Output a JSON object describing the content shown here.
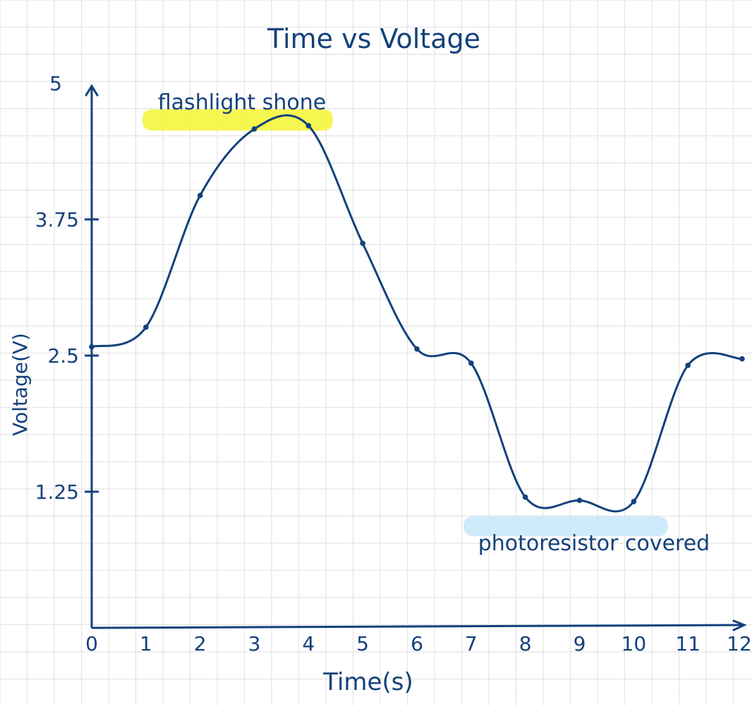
{
  "chart_data": {
    "type": "line",
    "title": "Time vs Voltage",
    "xlabel": "Time(s)",
    "ylabel": "Voltage(V)",
    "x": [
      0,
      1,
      2,
      3,
      4,
      5,
      6,
      7,
      8,
      9,
      10,
      11,
      12
    ],
    "series": [
      {
        "values": [
          2.58,
          2.76,
          3.97,
          4.58,
          4.61,
          3.53,
          2.56,
          2.43,
          1.2,
          1.17,
          1.16,
          2.41,
          2.47
        ]
      }
    ],
    "xticks": [
      "0",
      "1",
      "2",
      "3",
      "4",
      "5",
      "6",
      "7",
      "8",
      "9",
      "10",
      "11",
      "12"
    ],
    "yticks": [
      {
        "value": 1.25,
        "label": "1.25"
      },
      {
        "value": 2.5,
        "label": "2.5"
      },
      {
        "value": 3.75,
        "label": "3.75"
      },
      {
        "value": 5,
        "label": "5"
      }
    ],
    "xlim": [
      0,
      12
    ],
    "ylim": [
      0,
      5
    ],
    "grid": true,
    "annotations": [
      {
        "text": "flashlight shone",
        "x": 4,
        "y": 4.61,
        "highlight": "#f5f532"
      },
      {
        "text": "photoresistor covered",
        "x": 9,
        "y": 1.16,
        "highlight": "#c5e8fb"
      }
    ],
    "colors": {
      "ink": "#13417c",
      "grid": "#e4e4e4"
    }
  }
}
